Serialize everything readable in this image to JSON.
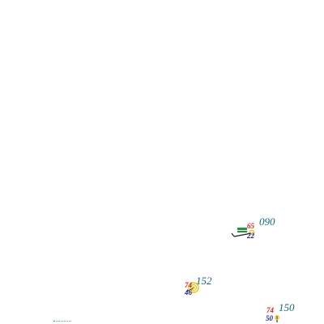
{
  "stations": [
    {
      "id": "s1",
      "pressure": "090",
      "temp": "65",
      "dew": "22"
    },
    {
      "id": "s2",
      "pressure": "152",
      "temp": "74",
      "dew": "46"
    },
    {
      "id": "s3",
      "pressure": "150",
      "temp": "74",
      "dew": "50"
    }
  ],
  "colors": {
    "pressure": "#0e6e7a",
    "temp": "#e02020",
    "dew": "#2020c0",
    "station_symbol": "#e8c800",
    "weather_symbol": "#1f9a3a",
    "barb": "#202020"
  }
}
